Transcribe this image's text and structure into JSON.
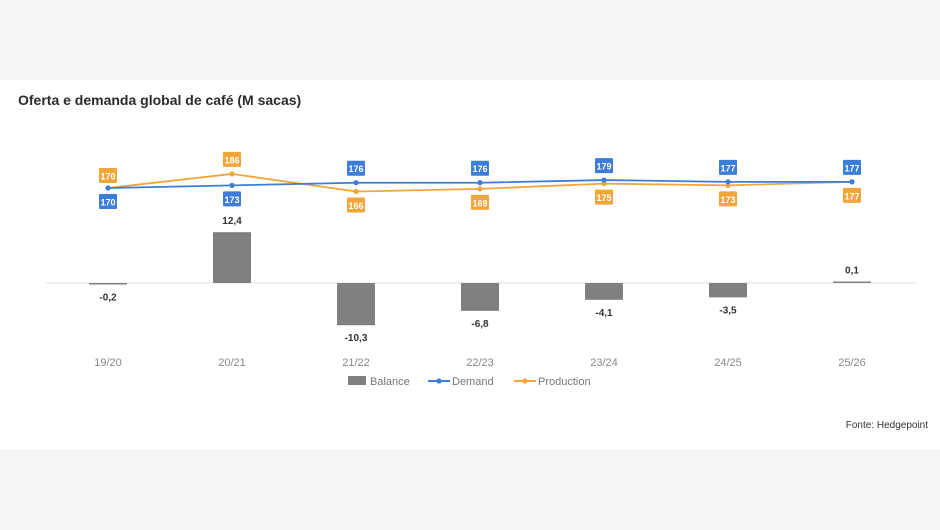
{
  "title": "Oferta e demanda global de café (M sacas)",
  "source": "Fonte: Hedgepoint",
  "chart_data": {
    "type": "bar",
    "categories": [
      "19/20",
      "20/21",
      "21/22",
      "22/23",
      "23/24",
      "24/25",
      "25/26"
    ],
    "series": [
      {
        "name": "Balance",
        "type": "bar",
        "values": [
          -0.2,
          12.4,
          -10.3,
          -6.8,
          -4.1,
          -3.5,
          0.1
        ],
        "labels": [
          "-0,2",
          "12,4",
          "-10,3",
          "-6,8",
          "-4,1",
          "-3,5",
          "0,1"
        ],
        "color": "#808080"
      },
      {
        "name": "Demand",
        "type": "line",
        "values": [
          170,
          173,
          176,
          176,
          179,
          177,
          177
        ],
        "color": "#3b7dd8"
      },
      {
        "name": "Production",
        "type": "line",
        "values": [
          170,
          186,
          166,
          169,
          175,
          173,
          177
        ],
        "color": "#f0a63a"
      }
    ],
    "legend_position": "bottom",
    "grid": false
  }
}
